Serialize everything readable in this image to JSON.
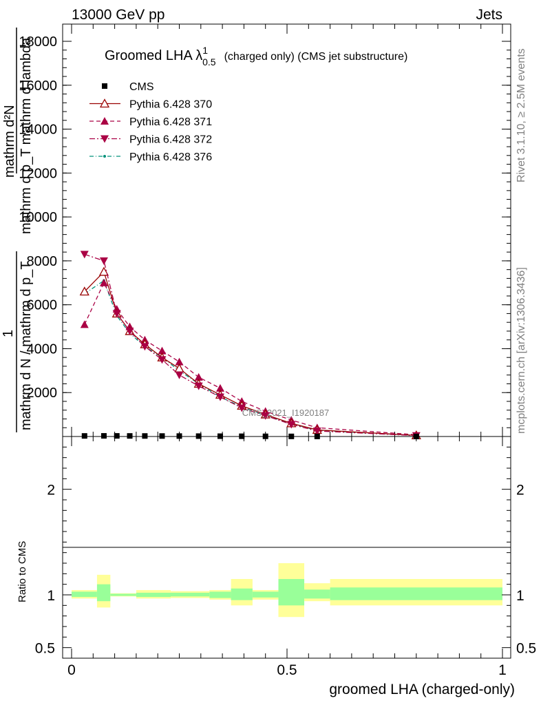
{
  "header": {
    "left": "13000 GeV pp",
    "right": "Jets"
  },
  "side": {
    "rivet": "Rivet 3.1.10, ≥ 2.5M events",
    "mcplots": "mcplots.cern.ch [arXiv:1306.3436]"
  },
  "watermark": "CMS_2021_I1920187",
  "chart_data": [
    {
      "type": "line",
      "title_main": "Groomed LHA λ",
      "title_sup": "1",
      "title_sub": "0.5",
      "title_rest": "(charged only) (CMS jet substructure)",
      "ylabel_lines": [
        "mathrm d²N",
        "mathrm d p_T mathrm d lambda",
        "1",
        "mathrm d N / mathrm d p_T"
      ],
      "xlabel": "groomed LHA (charged-only)",
      "xlim": [
        0,
        1
      ],
      "ylim": [
        0,
        18000
      ],
      "yticks": [
        2000,
        4000,
        6000,
        8000,
        10000,
        12000,
        14000,
        16000,
        18000
      ],
      "ytick_labels": [
        "2000",
        "4000",
        "6000",
        "8000",
        "10000",
        "12000",
        "14000",
        "16000",
        "18000"
      ],
      "xticks": [
        0,
        0.5,
        1
      ],
      "xtick_labels": [
        "0",
        "0.5",
        "1"
      ],
      "x": [
        0.03,
        0.075,
        0.105,
        0.135,
        0.17,
        0.21,
        0.25,
        0.295,
        0.345,
        0.395,
        0.45,
        0.51,
        0.57,
        0.8
      ],
      "legend_loc": "top-left",
      "series": [
        {
          "name": "CMS",
          "style": "square",
          "color": "#000000",
          "values": [
            26,
            29,
            28,
            26,
            24,
            22,
            20,
            17,
            14,
            11,
            8,
            5,
            3,
            1
          ]
        },
        {
          "name": "Pythia 6.428 370",
          "style": "solid-open-triangle-up",
          "color": "#990000",
          "values": [
            6600,
            7500,
            5600,
            4800,
            4200,
            3600,
            3100,
            2400,
            1900,
            1400,
            1000,
            600,
            300,
            50
          ]
        },
        {
          "name": "Pythia 6.428 371",
          "style": "dashed-triangle-up",
          "color": "#aa0044",
          "values": [
            5100,
            7000,
            5800,
            5000,
            4400,
            3900,
            3400,
            2700,
            2200,
            1600,
            1150,
            750,
            400,
            80
          ]
        },
        {
          "name": "Pythia 6.428 372",
          "style": "dashdot-triangle-down",
          "color": "#aa0044",
          "values": [
            8300,
            8000,
            5600,
            4800,
            4100,
            3500,
            2800,
            2300,
            1800,
            1300,
            950,
            550,
            250,
            40
          ]
        },
        {
          "name": "Pythia 6.428 376",
          "style": "dashdot-dot",
          "color": "#00917a",
          "values": [
            6500,
            7100,
            5500,
            4700,
            4100,
            3600,
            3000,
            2400,
            1800,
            1350,
            950,
            580,
            280,
            45
          ]
        }
      ]
    },
    {
      "type": "area",
      "ylabel": "Ratio to CMS",
      "ylim": [
        0.4,
        2.5
      ],
      "yticks": [
        0.5,
        1,
        2
      ],
      "ytick_labels": [
        "0.5",
        "1",
        "2"
      ],
      "bins": [
        {
          "x0": 0.0,
          "x1": 0.059,
          "y1_lo": 0.98,
          "y1_hi": 1.03,
          "y2_lo": 0.965,
          "y2_hi": 1.045
        },
        {
          "x0": 0.059,
          "x1": 0.09,
          "y1_lo": 0.94,
          "y1_hi": 1.1,
          "y2_lo": 0.88,
          "y2_hi": 1.19
        },
        {
          "x0": 0.09,
          "x1": 0.15,
          "y1_lo": 0.99,
          "y1_hi": 1.01,
          "y2_lo": 0.985,
          "y2_hi": 1.015
        },
        {
          "x0": 0.15,
          "x1": 0.23,
          "y1_lo": 0.98,
          "y1_hi": 1.02,
          "y2_lo": 0.965,
          "y2_hi": 1.045
        },
        {
          "x0": 0.23,
          "x1": 0.32,
          "y1_lo": 0.985,
          "y1_hi": 1.02,
          "y2_lo": 0.97,
          "y2_hi": 1.035
        },
        {
          "x0": 0.32,
          "x1": 0.37,
          "y1_lo": 0.97,
          "y1_hi": 1.03,
          "y2_lo": 0.955,
          "y2_hi": 1.045
        },
        {
          "x0": 0.37,
          "x1": 0.42,
          "y1_lo": 0.95,
          "y1_hi": 1.06,
          "y2_lo": 0.9,
          "y2_hi": 1.15
        },
        {
          "x0": 0.42,
          "x1": 0.48,
          "y1_lo": 0.975,
          "y1_hi": 1.03,
          "y2_lo": 0.955,
          "y2_hi": 1.045
        },
        {
          "x0": 0.48,
          "x1": 0.54,
          "y1_lo": 0.9,
          "y1_hi": 1.15,
          "y2_lo": 0.79,
          "y2_hi": 1.3
        },
        {
          "x0": 0.54,
          "x1": 0.6,
          "y1_lo": 0.965,
          "y1_hi": 1.05,
          "y2_lo": 0.94,
          "y2_hi": 1.11
        },
        {
          "x0": 0.6,
          "x1": 1.0,
          "y1_lo": 0.95,
          "y1_hi": 1.07,
          "y2_lo": 0.9,
          "y2_hi": 1.15
        }
      ],
      "band_colors": {
        "inner": "#99ff99",
        "outer": "#ffff99"
      }
    }
  ]
}
